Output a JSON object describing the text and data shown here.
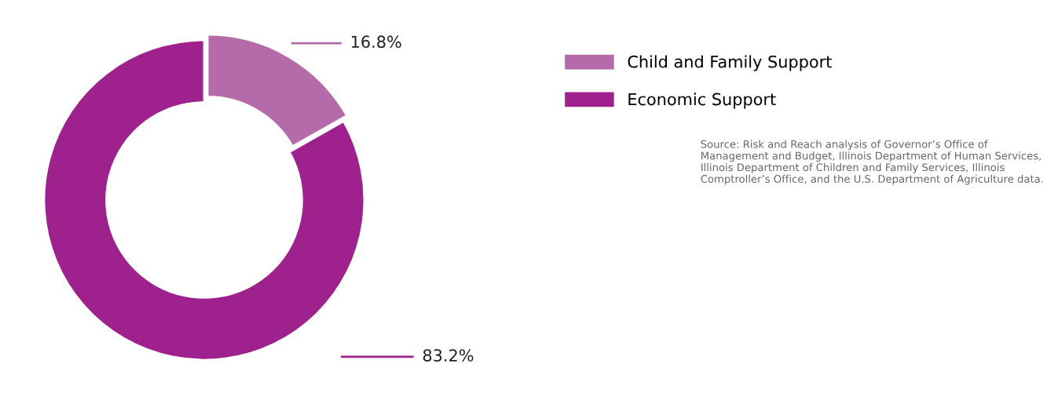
{
  "chart_data": {
    "type": "donut",
    "categories": [
      "Child and Family Support",
      "Economic Support"
    ],
    "values": [
      16.8,
      83.2
    ],
    "colors": [
      "#b56aa9",
      "#9e218d"
    ],
    "value_labels": [
      "16.8%",
      "83.2%"
    ],
    "legend": "right",
    "annotations": [
      "Source: Risk and Reach analysis of Governor’s Office of Management and Budget, Illinois Department of Human Services, Illinois Department of Children and Family Services, Illinois Comptroller’s Office, and the U.S. Department of Agriculture data."
    ]
  }
}
